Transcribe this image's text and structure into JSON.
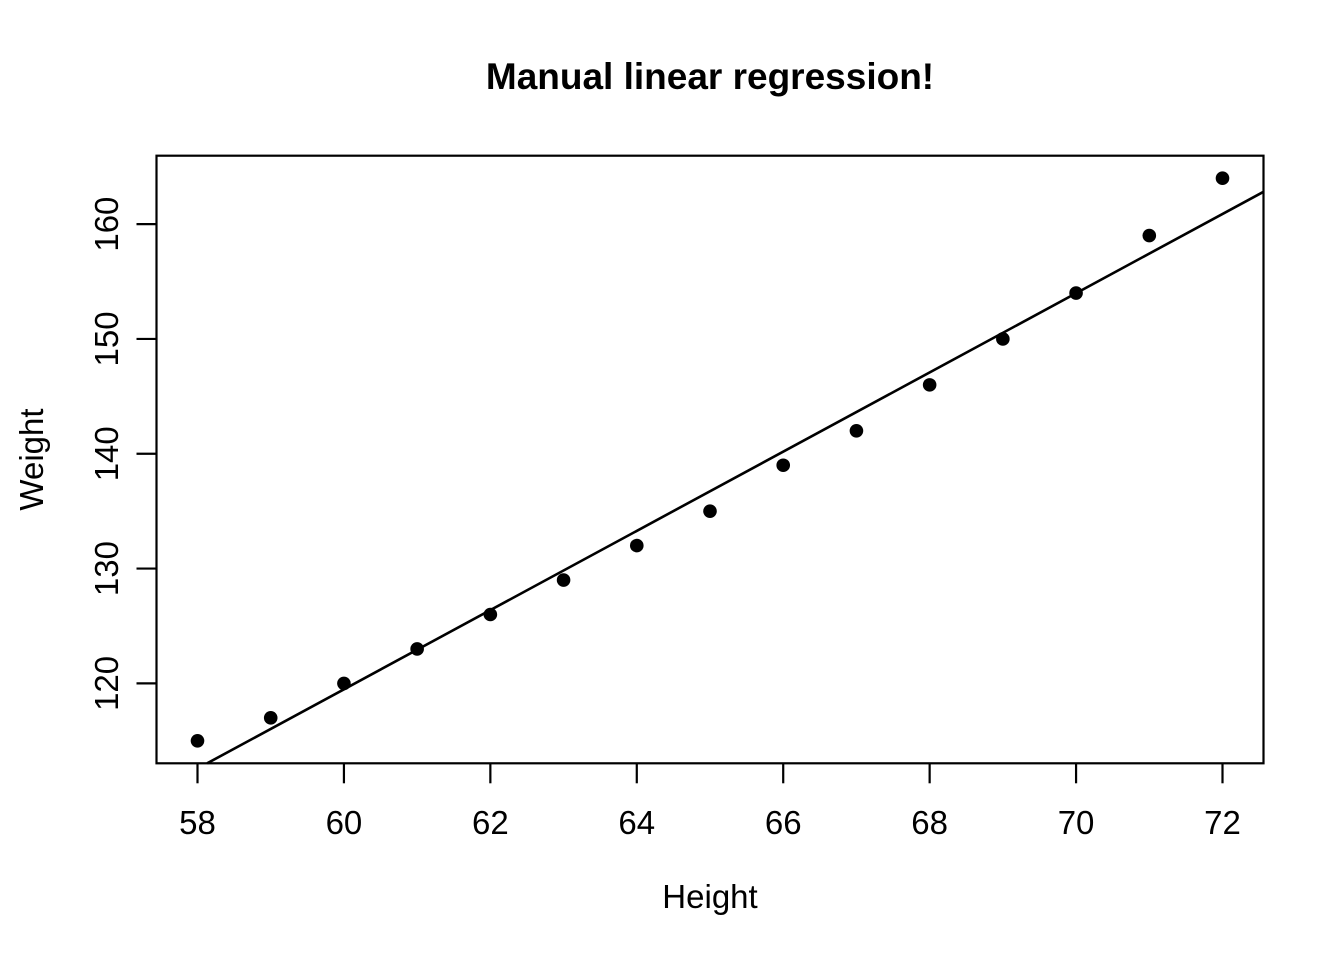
{
  "chart_data": {
    "type": "scatter",
    "title": "Manual linear regression!",
    "xlabel": "Height",
    "ylabel": "Weight",
    "x": [
      58,
      59,
      60,
      61,
      62,
      63,
      64,
      65,
      66,
      67,
      68,
      69,
      70,
      71,
      72
    ],
    "y": [
      115,
      117,
      120,
      123,
      126,
      129,
      132,
      135,
      139,
      142,
      146,
      150,
      154,
      159,
      164
    ],
    "x_ticks": [
      58,
      60,
      62,
      64,
      66,
      68,
      70,
      72
    ],
    "y_ticks": [
      120,
      130,
      140,
      150,
      160
    ],
    "xlim": [
      57.44,
      72.56
    ],
    "ylim": [
      113.04,
      165.96
    ],
    "grid": false,
    "legend": null,
    "point_style": {
      "shape": "filled-circle",
      "color": "#000000",
      "radius_px": 6.8
    },
    "regression_line": {
      "slope": 3.45,
      "intercept": -87.51667,
      "color": "#000000"
    },
    "axis_color": "#000000",
    "background": "#ffffff"
  }
}
